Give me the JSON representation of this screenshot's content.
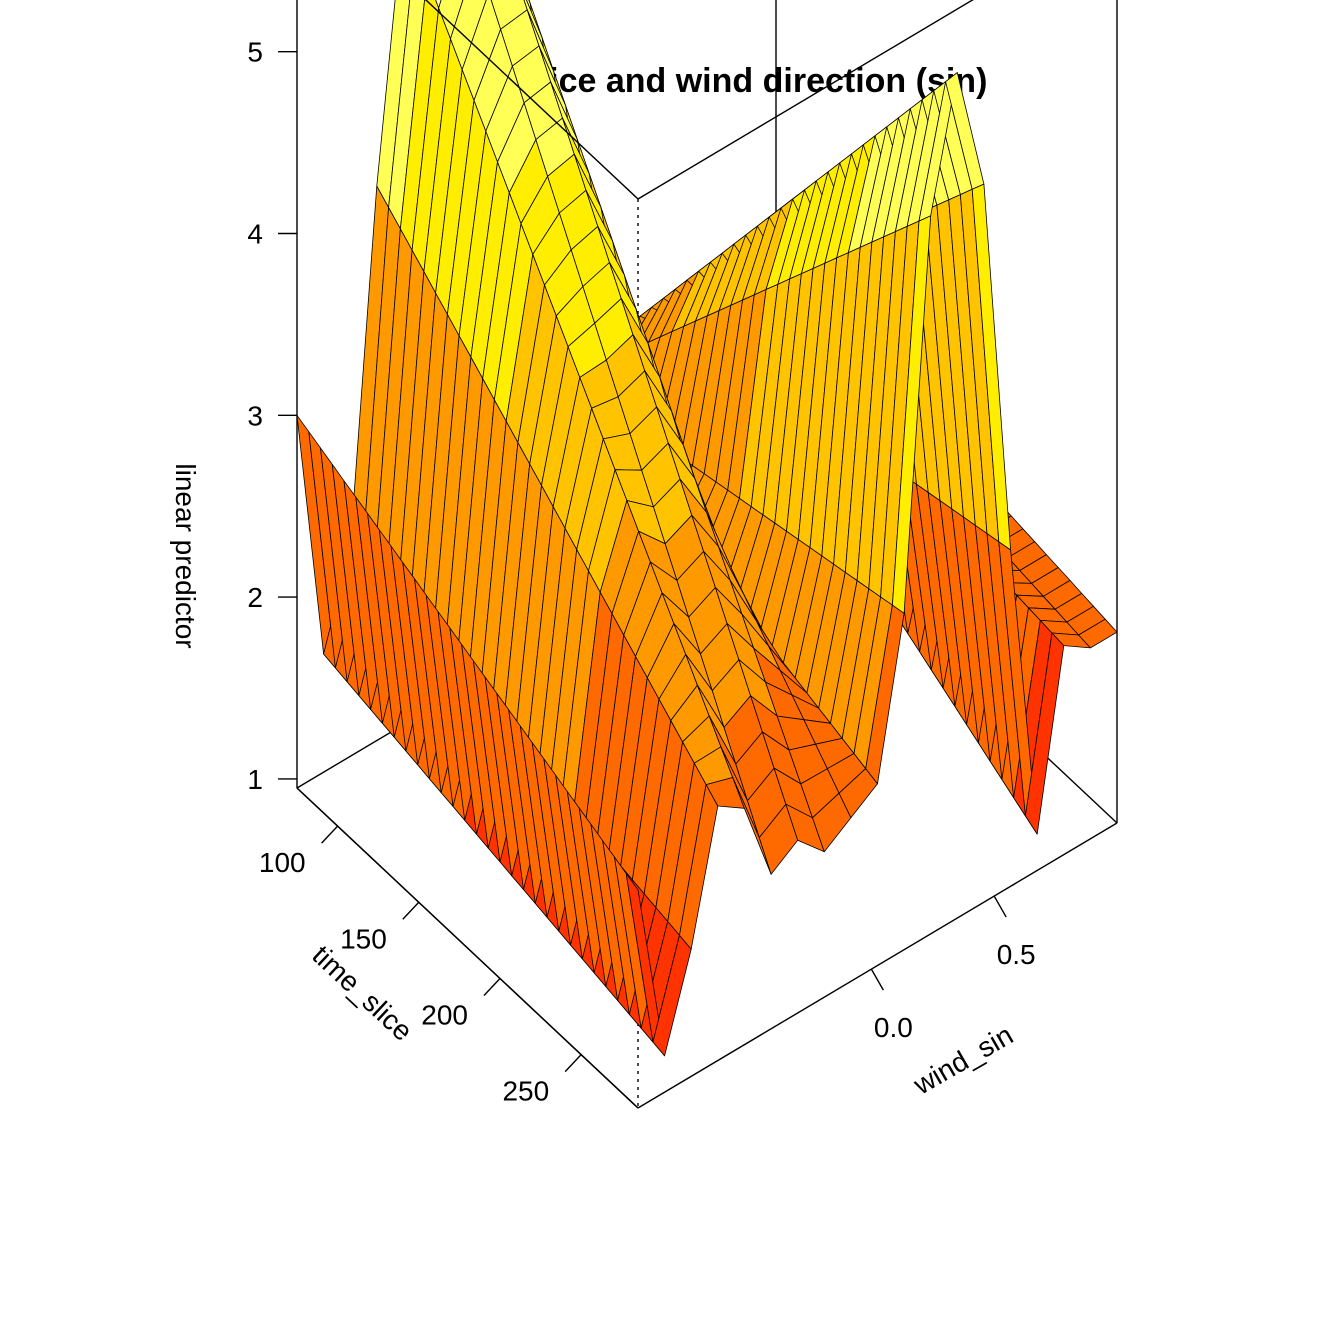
{
  "chart_data": {
    "type": "surface3d",
    "title": "Time slice and wind direction (sin)",
    "xlabel": "time_slice",
    "ylabel": "wind_sin",
    "zlabel": "linear predictor",
    "x_ticks": [
      100,
      150,
      200,
      250
    ],
    "y_ticks": [
      0.0,
      0.5
    ],
    "y_tick_labels": [
      "0.0",
      "0.5"
    ],
    "z_ticks": [
      1,
      2,
      3,
      4,
      5
    ],
    "xlim": [
      75,
      285
    ],
    "ylim": [
      -0.95,
      1.0
    ],
    "zlim": [
      0.95,
      5.95
    ],
    "colormap": [
      "#FF3300",
      "#FF6A00",
      "#FF9900",
      "#FFC300",
      "#FFEE00",
      "#FFFF55",
      "#FFFFC8"
    ],
    "z_at_min_time": [
      3.0,
      1.6,
      2.1,
      4.0,
      5.4,
      5.9,
      5.9,
      5.4,
      4.0,
      2.6,
      2.35,
      2.3,
      2.4,
      2.3,
      2.35,
      2.3,
      2.35,
      2.3,
      2.3
    ],
    "z_at_max_time": [
      2.15,
      1.15,
      1.65,
      2.35,
      2.25,
      1.8,
      1.9,
      1.75,
      1.85,
      1.95,
      2.8,
      4.9,
      5.6,
      4.9,
      2.8,
      1.15,
      2.1,
      2.0,
      2.0
    ]
  }
}
